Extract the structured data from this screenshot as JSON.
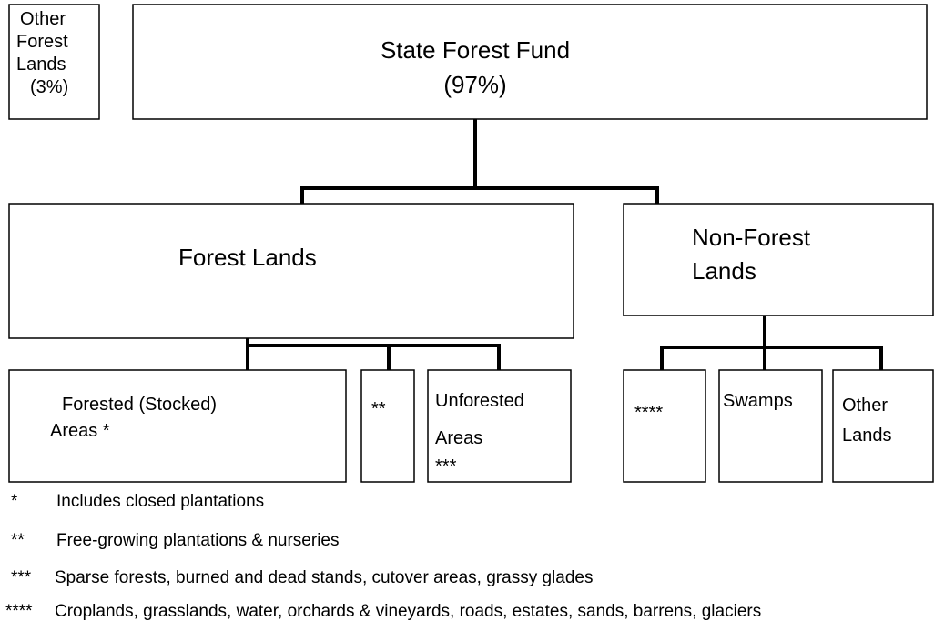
{
  "nodes": [
    {
      "lines": [
        "Other",
        "Forest",
        "Lands",
        "(3%)"
      ]
    },
    {
      "lines": [
        "State Forest Fund",
        "(97%)"
      ]
    },
    {
      "lines": [
        "Forest Lands"
      ]
    },
    {
      "lines": [
        "Non-Forest",
        "Lands"
      ]
    },
    {
      "lines": [
        "Forested (Stocked)",
        "Areas *"
      ]
    },
    {
      "lines": [
        "**"
      ]
    },
    {
      "lines": [
        "Unforested",
        "Areas",
        "***"
      ]
    },
    {
      "lines": [
        "****"
      ]
    },
    {
      "lines": [
        "Swamps"
      ]
    },
    {
      "lines": [
        "Other",
        "Lands"
      ]
    }
  ],
  "footnotes": [
    {
      "marker": "*",
      "text": "Includes closed plantations"
    },
    {
      "marker": "**",
      "text": "Free-growing plantations & nurseries"
    },
    {
      "marker": "***",
      "text": "Sparse forests, burned and dead stands, cutover areas, grassy glades"
    },
    {
      "marker": "****",
      "text": "Croplands, grasslands, water, orchards & vineyards, roads, estates, sands, barrens, glaciers"
    }
  ]
}
